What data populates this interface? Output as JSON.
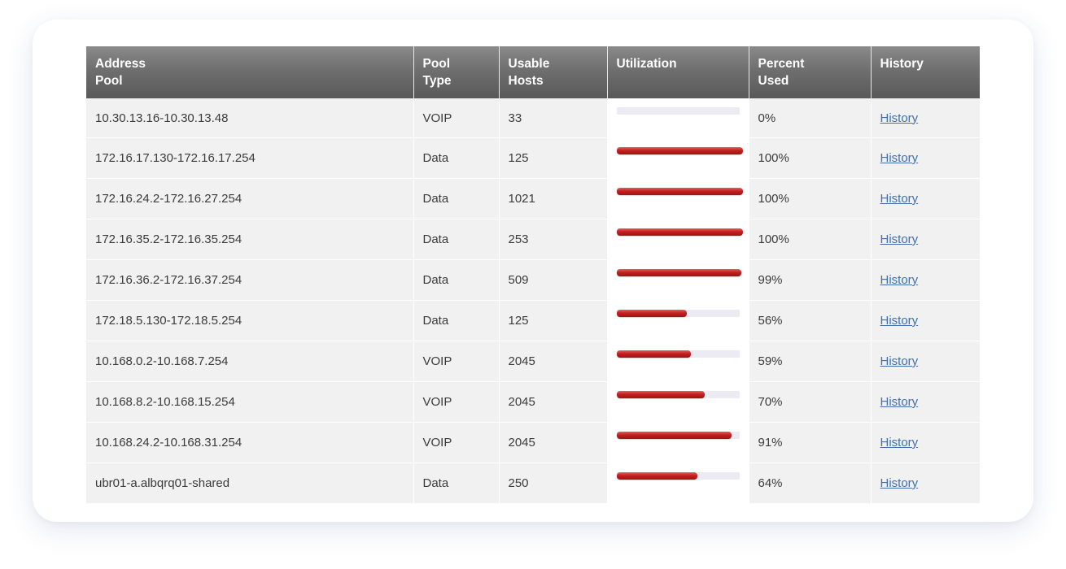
{
  "table": {
    "headers": [
      {
        "key": "address_pool",
        "label": "Address\nPool"
      },
      {
        "key": "pool_type",
        "label": "Pool\nType"
      },
      {
        "key": "usable_hosts",
        "label": "Usable\nHosts"
      },
      {
        "key": "utilization",
        "label": "Utilization"
      },
      {
        "key": "percent_used",
        "label": "Percent\nUsed"
      },
      {
        "key": "history",
        "label": "History"
      }
    ],
    "rows": [
      {
        "address_pool": "10.30.13.16-10.30.13.48",
        "pool_type": "VOIP",
        "usable_hosts": "33",
        "utilization": 0.0,
        "percent_used": "0%",
        "history": "History"
      },
      {
        "address_pool": "172.16.17.130-172.16.17.254",
        "pool_type": "Data",
        "usable_hosts": "125",
        "utilization": 1.0,
        "percent_used": "100%",
        "history": "History"
      },
      {
        "address_pool": "172.16.24.2-172.16.27.254",
        "pool_type": "Data",
        "usable_hosts": "1021",
        "utilization": 1.0,
        "percent_used": "100%",
        "history": "History"
      },
      {
        "address_pool": "172.16.35.2-172.16.35.254",
        "pool_type": "Data",
        "usable_hosts": "253",
        "utilization": 1.0,
        "percent_used": "100%",
        "history": "History"
      },
      {
        "address_pool": "172.16.36.2-172.16.37.254",
        "pool_type": "Data",
        "usable_hosts": "509",
        "utilization": 0.99,
        "percent_used": "99%",
        "history": "History"
      },
      {
        "address_pool": "172.18.5.130-172.18.5.254",
        "pool_type": "Data",
        "usable_hosts": "125",
        "utilization": 0.56,
        "percent_used": "56%",
        "history": "History"
      },
      {
        "address_pool": "10.168.0.2-10.168.7.254",
        "pool_type": "VOIP",
        "usable_hosts": "2045",
        "utilization": 0.59,
        "percent_used": "59%",
        "history": "History"
      },
      {
        "address_pool": "10.168.8.2-10.168.15.254",
        "pool_type": "VOIP",
        "usable_hosts": "2045",
        "utilization": 0.7,
        "percent_used": "70%",
        "history": "History"
      },
      {
        "address_pool": "10.168.24.2-10.168.31.254",
        "pool_type": "VOIP",
        "usable_hosts": "2045",
        "utilization": 0.91,
        "percent_used": "91%",
        "history": "History"
      },
      {
        "address_pool": "ubr01-a.albqrq01-shared",
        "pool_type": "Data",
        "usable_hosts": "250",
        "utilization": 0.64,
        "percent_used": "64%",
        "history": "History"
      }
    ]
  },
  "colors": {
    "header_bg": "#6f6f6f",
    "row_bg": "#f1f1f1",
    "bar_fill": "#c42020",
    "bar_track": "#ecebf3",
    "link": "#3f6fae"
  }
}
